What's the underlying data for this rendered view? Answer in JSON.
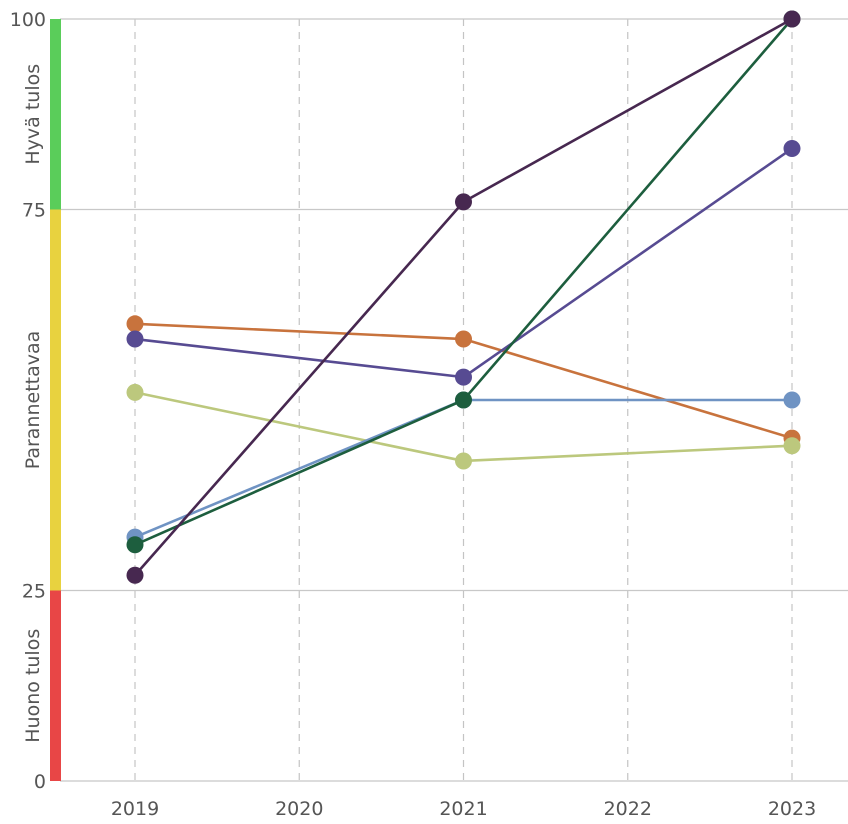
{
  "chart_data": {
    "type": "line",
    "x": [
      "2019",
      "2020",
      "2021",
      "2022",
      "2023"
    ],
    "ylim": [
      0,
      100
    ],
    "y_ticks": [
      {
        "value": 0,
        "label": "0"
      },
      {
        "value": 25,
        "label": "25"
      },
      {
        "value": 75,
        "label": "75"
      },
      {
        "value": 100,
        "label": "100"
      }
    ],
    "bands": [
      {
        "from": 75,
        "to": 100,
        "label": "Hyvä tulos",
        "color": "#5acd5a"
      },
      {
        "from": 25,
        "to": 75,
        "label": "Parannettavaa",
        "color": "#e8d23f"
      },
      {
        "from": 0,
        "to": 25,
        "label": "Huono tulos",
        "color": "#e84646"
      }
    ],
    "grid": {
      "horizontal": "solid",
      "vertical": "dashed"
    },
    "series": [
      {
        "color": "#c8733d",
        "values": [
          60,
          null,
          58,
          null,
          45
        ]
      },
      {
        "color": "#574b92",
        "values": [
          58,
          null,
          53,
          null,
          83
        ]
      },
      {
        "color": "#bcc87d",
        "values": [
          51,
          null,
          42,
          null,
          44
        ]
      },
      {
        "color": "#6f93c3",
        "values": [
          32,
          null,
          50,
          null,
          50
        ]
      },
      {
        "color": "#1d5e3e",
        "values": [
          31,
          null,
          50,
          null,
          100
        ]
      },
      {
        "color": "#472850",
        "values": [
          27,
          null,
          76,
          null,
          100
        ]
      }
    ]
  }
}
